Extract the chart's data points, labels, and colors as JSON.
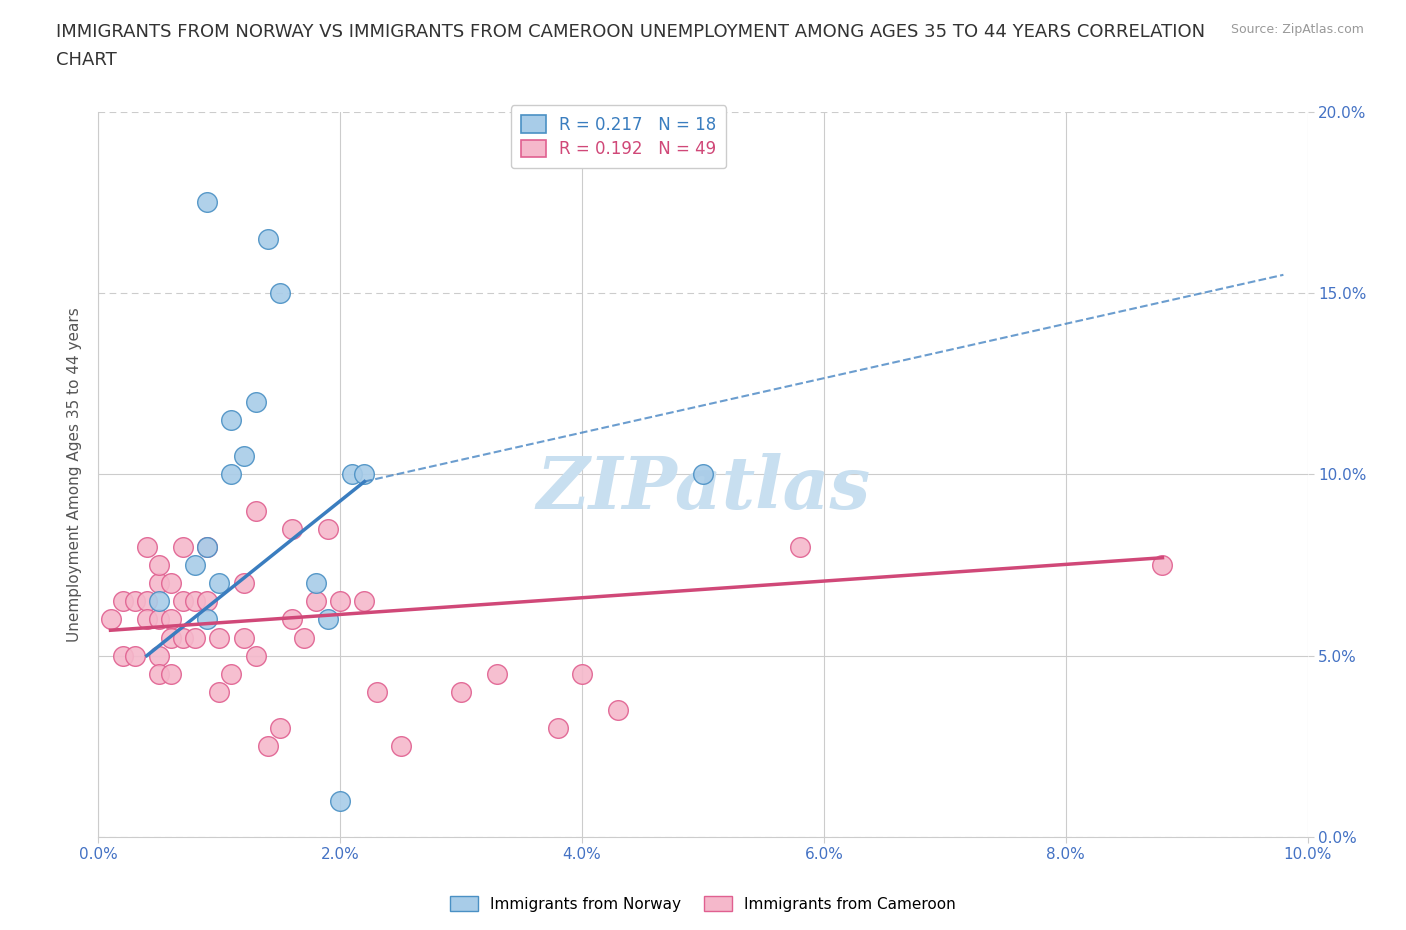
{
  "title_line1": "IMMIGRANTS FROM NORWAY VS IMMIGRANTS FROM CAMEROON UNEMPLOYMENT AMONG AGES 35 TO 44 YEARS CORRELATION",
  "title_line2": "CHART",
  "source": "Source: ZipAtlas.com",
  "ylabel": "Unemployment Among Ages 35 to 44 years",
  "xlim": [
    0.0,
    0.1
  ],
  "ylim": [
    0.0,
    0.2
  ],
  "xticks": [
    0.0,
    0.02,
    0.04,
    0.06,
    0.08,
    0.1
  ],
  "yticks": [
    0.0,
    0.05,
    0.1,
    0.15,
    0.2
  ],
  "xticklabels": [
    "0.0%",
    "2.0%",
    "4.0%",
    "6.0%",
    "8.0%",
    "10.0%"
  ],
  "yticklabels": [
    "0.0%",
    "5.0%",
    "10.0%",
    "15.0%",
    "20.0%"
  ],
  "norway_color": "#a8cce8",
  "norway_edge_color": "#4a90c4",
  "norway_line_color": "#3a7dbf",
  "cameroon_color": "#f5b8cb",
  "cameroon_edge_color": "#e06090",
  "cameroon_line_color": "#d04878",
  "norway_R": 0.217,
  "norway_N": 18,
  "cameroon_R": 0.192,
  "cameroon_N": 49,
  "norway_x": [
    0.005,
    0.008,
    0.009,
    0.009,
    0.01,
    0.011,
    0.011,
    0.012,
    0.013,
    0.014,
    0.015,
    0.018,
    0.019,
    0.02,
    0.021,
    0.022,
    0.05,
    0.009
  ],
  "norway_y": [
    0.065,
    0.075,
    0.08,
    0.06,
    0.07,
    0.115,
    0.1,
    0.105,
    0.12,
    0.165,
    0.15,
    0.07,
    0.06,
    0.01,
    0.1,
    0.1,
    0.1,
    0.175
  ],
  "cameroon_x": [
    0.001,
    0.002,
    0.002,
    0.003,
    0.003,
    0.004,
    0.004,
    0.004,
    0.005,
    0.005,
    0.005,
    0.005,
    0.005,
    0.006,
    0.006,
    0.006,
    0.006,
    0.007,
    0.007,
    0.007,
    0.008,
    0.008,
    0.009,
    0.009,
    0.01,
    0.01,
    0.011,
    0.012,
    0.012,
    0.013,
    0.013,
    0.014,
    0.015,
    0.016,
    0.016,
    0.017,
    0.018,
    0.019,
    0.02,
    0.022,
    0.023,
    0.025,
    0.03,
    0.033,
    0.038,
    0.04,
    0.043,
    0.058,
    0.088
  ],
  "cameroon_y": [
    0.06,
    0.065,
    0.05,
    0.05,
    0.065,
    0.065,
    0.06,
    0.08,
    0.05,
    0.06,
    0.07,
    0.075,
    0.045,
    0.06,
    0.07,
    0.045,
    0.055,
    0.055,
    0.065,
    0.08,
    0.055,
    0.065,
    0.065,
    0.08,
    0.04,
    0.055,
    0.045,
    0.055,
    0.07,
    0.05,
    0.09,
    0.025,
    0.03,
    0.06,
    0.085,
    0.055,
    0.065,
    0.085,
    0.065,
    0.065,
    0.04,
    0.025,
    0.04,
    0.045,
    0.03,
    0.045,
    0.035,
    0.08,
    0.075
  ],
  "background_color": "#ffffff",
  "grid_color": "#d0d0d0",
  "grid_style_solid": [
    0.05,
    0.1
  ],
  "grid_style_dashed": [
    0.0,
    0.15,
    0.2
  ],
  "title_fontsize": 13,
  "label_fontsize": 11,
  "tick_fontsize": 11,
  "tick_color": "#4472c4",
  "legend_fontsize": 12,
  "watermark_text": "ZIPatlas",
  "watermark_color": "#c8dff0",
  "watermark_fontsize": 52
}
